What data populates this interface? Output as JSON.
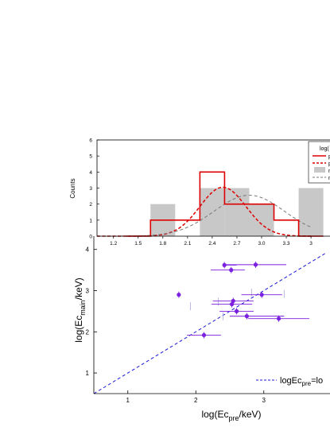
{
  "chart_data": [
    {
      "type": "bar",
      "title": "",
      "ylabel": "Counts",
      "xlabel": "",
      "ylim": [
        0,
        6
      ],
      "xlim": [
        1.0,
        3.6
      ],
      "yticks": [
        "0",
        "1",
        "2",
        "3",
        "4",
        "5",
        "6"
      ],
      "xticks": [
        "1.2",
        "1.5",
        "1.8",
        "2.1",
        "2.4",
        "2.7",
        "3.0",
        "3.3",
        "3"
      ],
      "legend_title": "log(",
      "legend_position": "top-right",
      "legend_entries": [
        {
          "label": "p",
          "style": "solid-red"
        },
        {
          "label": "p",
          "style": "dashed-red"
        },
        {
          "label": "n",
          "style": "gray-fill"
        },
        {
          "label": "n",
          "style": "dashed-gray"
        }
      ],
      "series": [
        {
          "kind": "histogram-gray",
          "color": "#c8c8c8",
          "bins": [
            [
              1.65,
              1.95,
              2
            ],
            [
              2.25,
              2.55,
              3
            ],
            [
              2.55,
              2.85,
              3
            ],
            [
              2.85,
              3.15,
              2
            ],
            [
              3.45,
              3.75,
              3
            ]
          ]
        },
        {
          "kind": "histogram-red",
          "color": "#dd0000",
          "bins": [
            [
              1.35,
              1.65,
              0
            ],
            [
              1.65,
              2.25,
              1
            ],
            [
              2.25,
              2.55,
              4
            ],
            [
              2.55,
              3.15,
              2
            ],
            [
              3.15,
              3.45,
              1
            ],
            [
              3.45,
              3.75,
              0
            ]
          ]
        },
        {
          "kind": "gaussian-red-dashed",
          "color": "#dd0000",
          "mean": 2.53,
          "sigma": 0.28,
          "peak": 3.05
        },
        {
          "kind": "gaussian-gray-dashed",
          "color": "#777777",
          "mean": 2.85,
          "sigma": 0.43,
          "peak": 2.55
        }
      ]
    },
    {
      "type": "scatter",
      "title": "",
      "xlabel_main": "log(Ec",
      "xlabel_sub": "pre",
      "xlabel_tail": "/keV)",
      "ylabel_main": "log(Ec",
      "ylabel_sub": "main",
      "ylabel_tail": "/keV)",
      "xlim": [
        0.5,
        3.75
      ],
      "ylim": [
        0.5,
        4.3
      ],
      "xticks": [
        "1",
        "2",
        "3"
      ],
      "yticks": [
        "1",
        "2",
        "3",
        "4"
      ],
      "color": "#7b1fe0",
      "line_color": "#1a1ad6",
      "legend_main": "logEc",
      "legend_sub": "pre",
      "legend_tail": "=lo",
      "legend_position": "bottom-right",
      "points": [
        {
          "x": 2.42,
          "y": 3.62,
          "xerr": [
            0.0,
            0.18
          ]
        },
        {
          "x": 2.52,
          "y": 3.5,
          "xerr": [
            0.3,
            0.2
          ]
        },
        {
          "x": 2.88,
          "y": 3.63,
          "xerr": [
            0.45,
            0.45
          ]
        },
        {
          "x": 1.75,
          "y": 2.9,
          "xerr": [
            0.0,
            0.0
          ]
        },
        {
          "x": 2.97,
          "y": 2.9,
          "xerr": [
            0.3,
            0.3
          ]
        },
        {
          "x": 2.55,
          "y": 2.75,
          "xerr": [
            0.3,
            0.3
          ]
        },
        {
          "x": 2.53,
          "y": 2.67,
          "xerr": [
            0.3,
            0.3
          ]
        },
        {
          "x": 2.6,
          "y": 2.5,
          "xerr": [
            0.25,
            0.25
          ]
        },
        {
          "x": 2.75,
          "y": 2.38,
          "xerr": [
            0.25,
            0.55
          ]
        },
        {
          "x": 3.22,
          "y": 2.32,
          "xerr": [
            0.45,
            0.45
          ]
        },
        {
          "x": 2.12,
          "y": 1.92,
          "xerr": [
            0.25,
            0.25
          ]
        }
      ],
      "bare_errorbars": [
        {
          "x": 2.33,
          "y": 2.73
        },
        {
          "x": 2.82,
          "y": 2.95
        },
        {
          "x": 3.3,
          "y": 2.92
        },
        {
          "x": 1.92,
          "y": 2.62
        },
        {
          "x": 2.4,
          "y": 2.38
        }
      ],
      "reference_line": {
        "kind": "y=x"
      }
    }
  ]
}
